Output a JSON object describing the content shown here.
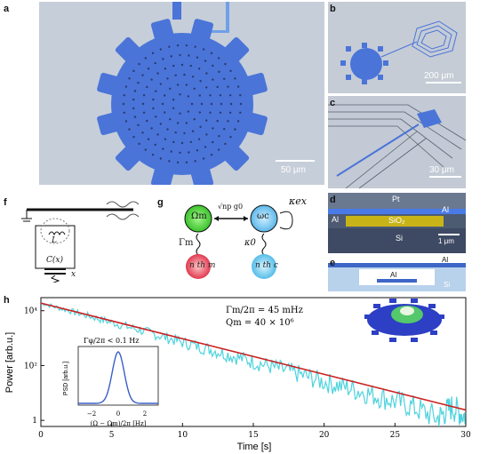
{
  "panels": {
    "a": {
      "label": "a",
      "scale": "50 μm"
    },
    "b": {
      "label": "b",
      "scale": "200 μm"
    },
    "c": {
      "label": "c",
      "scale": "30 μm"
    },
    "d": {
      "label": "d",
      "pt": "Pt",
      "al_left": "Al",
      "al_right": "Al",
      "sio2": "SiO₂",
      "si": "Si",
      "scale": "1 μm"
    },
    "e": {
      "label": "e",
      "al_top": "Al",
      "al_mid": "Al",
      "si": "Si"
    },
    "f": {
      "label": "f",
      "L": "L",
      "C": "C(x)",
      "x": "x"
    },
    "g": {
      "label": "g",
      "omega_m": "Ωm",
      "omega_c": "ωc",
      "kappa_ex": "κex",
      "coupling": "√np g0",
      "gamma_m": "Γm",
      "kappa_0": "κ0",
      "n_m": "n th m",
      "n_c": "n th c"
    },
    "h": {
      "label": "h",
      "annotation_1": "Γm/2π = 45 mHz",
      "annotation_2": "Qm = 40 × 10⁶",
      "inset_title": "Γφ/2π < 0.1 Hz",
      "inset_ylabel": "PSD [arb.u.]",
      "inset_xlabel": "(Ω − Ωm)/2π [Hz]"
    }
  },
  "chart_data": [
    {
      "type": "line",
      "xlabel": "Time [s]",
      "ylabel": "Power [arb.u.]",
      "xlim": [
        0,
        30
      ],
      "ylim": [
        0.6,
        30000
      ],
      "yscale": "log",
      "xticks": [
        0,
        5,
        10,
        15,
        20,
        25,
        30
      ],
      "yticks": [
        1,
        100,
        10000
      ],
      "ytick_labels": [
        "1",
        "10²",
        "10⁴"
      ],
      "series": [
        {
          "color": "#4fd2dd",
          "x": [
            0,
            2,
            4,
            6,
            8,
            10,
            12,
            14,
            16,
            18,
            20,
            22,
            24,
            26,
            28,
            29,
            30
          ],
          "y": [
            19000,
            10000,
            5200,
            2700,
            1400,
            700,
            380,
            190,
            100,
            52,
            25,
            14,
            7,
            3.5,
            1.2,
            3,
            1.4
          ]
        },
        {
          "color": "#cc2222",
          "x": [
            0,
            30
          ],
          "y": [
            19000,
            2.4
          ]
        }
      ],
      "annotations": [
        "Γm/2π = 45 mHz",
        "Qm = 40 × 10⁶"
      ]
    },
    {
      "type": "line",
      "title": "Γφ/2π < 0.1 Hz",
      "xlabel": "(Ω − Ωm)/2π [Hz]",
      "ylabel": "PSD [arb.u.]",
      "xlim": [
        -3,
        3
      ],
      "xticks": [
        -2,
        0,
        2
      ],
      "series": [
        {
          "color": "#3a5fc8",
          "x": [
            -3,
            -2,
            -1.5,
            -1,
            -0.5,
            0,
            0.5,
            1,
            1.5,
            2,
            3
          ],
          "y": [
            0,
            0,
            0.02,
            0.12,
            0.6,
            1,
            0.6,
            0.12,
            0.02,
            0,
            0
          ]
        }
      ]
    }
  ],
  "colors": {
    "device_blue": "#4a74d8",
    "sem_gray": "#c7cfd9",
    "trace_cyan": "#4fd2dd",
    "fit_red": "#cc2222",
    "bath_red": "#e05060",
    "bath_blue": "#5bc0e8",
    "mode_green": "#58dd3c"
  }
}
